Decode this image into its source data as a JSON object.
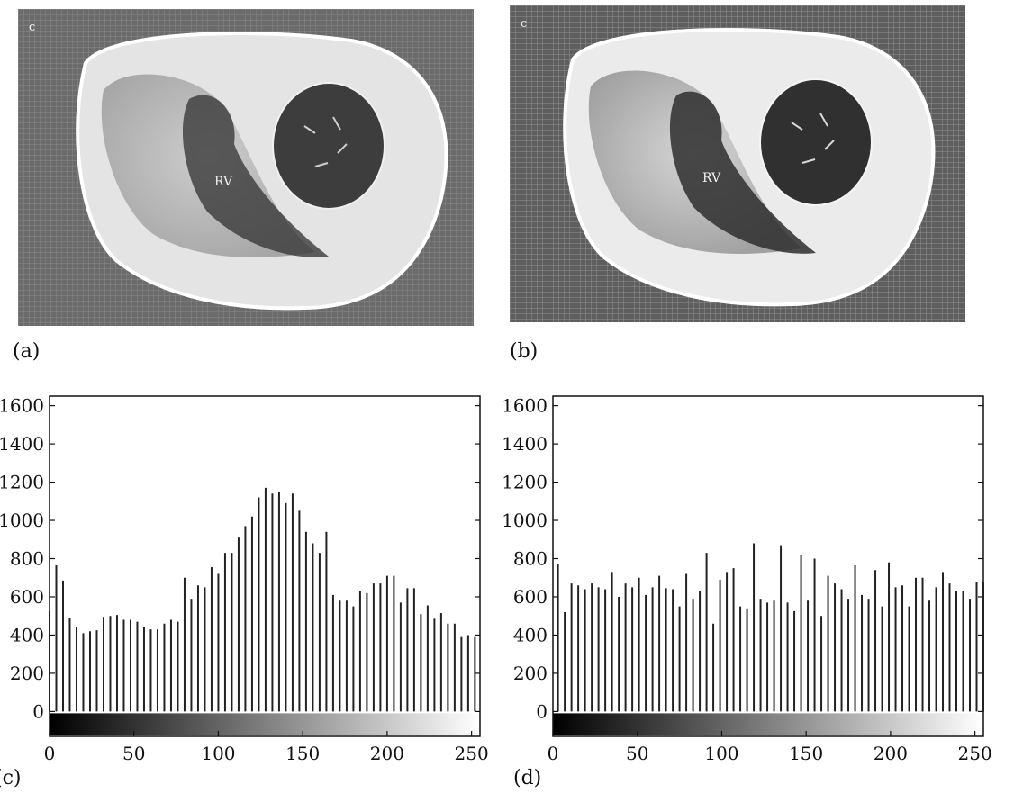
{
  "panels": {
    "a": {
      "label": "(a)",
      "corner_letter": "c",
      "region_label": "RV"
    },
    "b": {
      "label": "(b)",
      "corner_letter": "c",
      "region_label": "RV"
    },
    "c": {
      "label": "(c)"
    },
    "d": {
      "label": "(d)"
    }
  },
  "colors": {
    "bars": "#222222",
    "axes": "#111111",
    "tissue": "#dcdcdc",
    "background_texture": "#6a6a6a"
  },
  "chart_data": [
    {
      "panel": "(c)",
      "type": "bar",
      "xlim": [
        0,
        255
      ],
      "ylim": [
        -130,
        1650
      ],
      "xticks": [
        0,
        50,
        100,
        150,
        200,
        250
      ],
      "yticks": [
        0,
        200,
        400,
        600,
        800,
        1000,
        1200,
        1400,
        1600
      ],
      "colorbar": "grayscale-gradient",
      "x": [
        0,
        4,
        8,
        12,
        16,
        20,
        24,
        28,
        32,
        36,
        40,
        44,
        48,
        52,
        56,
        60,
        64,
        68,
        72,
        76,
        80,
        84,
        88,
        92,
        96,
        100,
        104,
        108,
        112,
        116,
        120,
        124,
        128,
        132,
        136,
        140,
        144,
        148,
        152,
        156,
        160,
        164,
        168,
        172,
        176,
        180,
        184,
        188,
        192,
        196,
        200,
        204,
        208,
        212,
        216,
        220,
        224,
        228,
        232,
        236,
        240,
        244,
        248,
        252
      ],
      "values": [
        525,
        765,
        685,
        490,
        440,
        410,
        420,
        425,
        495,
        500,
        505,
        480,
        480,
        470,
        440,
        430,
        430,
        460,
        480,
        470,
        700,
        590,
        660,
        650,
        755,
        720,
        830,
        830,
        910,
        970,
        1020,
        1120,
        1170,
        1140,
        1150,
        1090,
        1140,
        1050,
        940,
        880,
        830,
        940,
        610,
        580,
        580,
        550,
        630,
        620,
        670,
        670,
        710,
        710,
        570,
        645,
        645,
        510,
        555,
        485,
        515,
        460,
        460,
        390,
        400,
        390
      ]
    },
    {
      "panel": "(d)",
      "type": "bar",
      "xlim": [
        0,
        255
      ],
      "ylim": [
        -130,
        1650
      ],
      "xticks": [
        0,
        50,
        100,
        150,
        200,
        250
      ],
      "yticks": [
        0,
        200,
        400,
        600,
        800,
        1000,
        1200,
        1400,
        1600
      ],
      "colorbar": "grayscale-gradient",
      "x": [
        3,
        7,
        11,
        15,
        19,
        23,
        27,
        31,
        35,
        39,
        43,
        47,
        51,
        55,
        59,
        63,
        67,
        71,
        75,
        79,
        83,
        87,
        91,
        95,
        99,
        103,
        107,
        111,
        115,
        119,
        123,
        127,
        131,
        135,
        139,
        143,
        147,
        151,
        155,
        159,
        163,
        167,
        171,
        175,
        179,
        183,
        187,
        191,
        195,
        199,
        203,
        207,
        211,
        215,
        219,
        223,
        227,
        231,
        235,
        239,
        243,
        247,
        251,
        255
      ],
      "values": [
        770,
        520,
        670,
        660,
        640,
        670,
        650,
        640,
        730,
        600,
        670,
        650,
        700,
        610,
        650,
        710,
        645,
        640,
        550,
        720,
        590,
        630,
        830,
        460,
        690,
        730,
        750,
        550,
        540,
        880,
        590,
        570,
        580,
        870,
        570,
        525,
        820,
        580,
        800,
        500,
        710,
        670,
        640,
        590,
        765,
        610,
        590,
        740,
        550,
        780,
        650,
        660,
        550,
        700,
        700,
        580,
        650,
        730,
        670,
        630,
        630,
        590,
        680,
        680
      ]
    }
  ]
}
